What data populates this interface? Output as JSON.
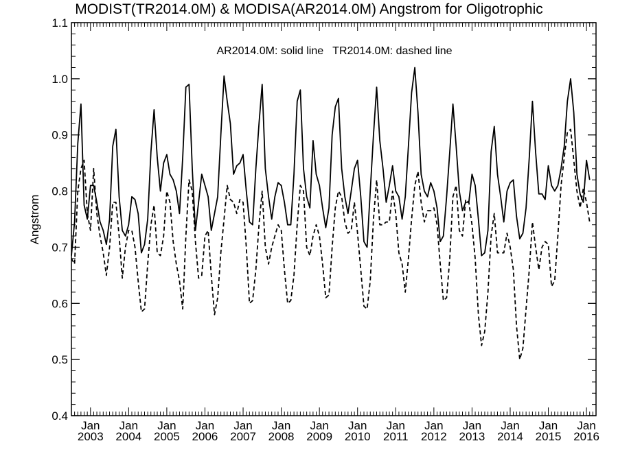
{
  "chart_data": {
    "type": "line",
    "title": "MODIST(TR2014.0M) & MODISA(AR2014.0M)  Angstrom for Oligotrophic",
    "ylabel": "Angstrom",
    "xlabel": "",
    "annotation": "AR2014.0M: solid line   TR2014.0M: dashed line",
    "ylim": [
      0.4,
      1.1
    ],
    "xlim": [
      2002.5,
      2016.25
    ],
    "yticks": [
      "0.4",
      "0.5",
      "0.6",
      "0.7",
      "0.8",
      "0.9",
      "1.0",
      "1.1"
    ],
    "x_tick_labels": [
      {
        "month": "Jan",
        "year": "2003"
      },
      {
        "month": "Jan",
        "year": "2004"
      },
      {
        "month": "Jan",
        "year": "2005"
      },
      {
        "month": "Jan",
        "year": "2006"
      },
      {
        "month": "Jan",
        "year": "2007"
      },
      {
        "month": "Jan",
        "year": "2008"
      },
      {
        "month": "Jan",
        "year": "2009"
      },
      {
        "month": "Jan",
        "year": "2010"
      },
      {
        "month": "Jan",
        "year": "2011"
      },
      {
        "month": "Jan",
        "year": "2012"
      },
      {
        "month": "Jan",
        "year": "2013"
      },
      {
        "month": "Jan",
        "year": "2014"
      },
      {
        "month": "Jan",
        "year": "2015"
      },
      {
        "month": "Jan",
        "year": "2016"
      }
    ],
    "grid": false,
    "series": [
      {
        "name": "AR2014.0M",
        "style": "solid",
        "color": "#000000",
        "values": [
          0.685,
          0.745,
          0.885,
          0.955,
          0.775,
          0.75,
          0.81,
          0.81,
          0.78,
          0.745,
          0.73,
          0.705,
          0.75,
          0.88,
          0.91,
          0.79,
          0.73,
          0.72,
          0.74,
          0.79,
          0.785,
          0.76,
          0.69,
          0.705,
          0.75,
          0.87,
          0.945,
          0.86,
          0.8,
          0.85,
          0.865,
          0.83,
          0.82,
          0.8,
          0.76,
          0.86,
          0.985,
          0.99,
          0.84,
          0.73,
          0.78,
          0.83,
          0.81,
          0.79,
          0.73,
          0.76,
          0.79,
          0.9,
          1.005,
          0.96,
          0.92,
          0.83,
          0.845,
          0.85,
          0.865,
          0.8,
          0.745,
          0.74,
          0.84,
          0.92,
          0.99,
          0.84,
          0.79,
          0.75,
          0.79,
          0.815,
          0.81,
          0.78,
          0.74,
          0.74,
          0.83,
          0.96,
          0.98,
          0.84,
          0.79,
          0.77,
          0.89,
          0.83,
          0.81,
          0.77,
          0.735,
          0.77,
          0.9,
          0.95,
          0.965,
          0.84,
          0.79,
          0.76,
          0.8,
          0.84,
          0.855,
          0.79,
          0.71,
          0.7,
          0.8,
          0.9,
          0.985,
          0.89,
          0.84,
          0.78,
          0.81,
          0.845,
          0.8,
          0.79,
          0.75,
          0.79,
          0.88,
          0.975,
          1.02,
          0.94,
          0.83,
          0.8,
          0.79,
          0.815,
          0.8,
          0.77,
          0.71,
          0.72,
          0.79,
          0.87,
          0.955,
          0.88,
          0.8,
          0.765,
          0.78,
          0.78,
          0.83,
          0.81,
          0.75,
          0.685,
          0.69,
          0.73,
          0.87,
          0.915,
          0.83,
          0.79,
          0.745,
          0.8,
          0.815,
          0.82,
          0.755,
          0.715,
          0.725,
          0.77,
          0.86,
          0.96,
          0.87,
          0.795,
          0.795,
          0.785,
          0.845,
          0.81,
          0.8,
          0.81,
          0.84,
          0.88,
          0.96,
          1.0,
          0.94,
          0.83,
          0.795,
          0.78,
          0.855,
          0.82
        ]
      },
      {
        "name": "TR2014.0M",
        "style": "dashed",
        "color": "#000000",
        "values": [
          0.68,
          0.67,
          0.8,
          0.84,
          0.855,
          0.76,
          0.73,
          0.84,
          0.76,
          0.72,
          0.69,
          0.65,
          0.7,
          0.78,
          0.78,
          0.72,
          0.645,
          0.7,
          0.73,
          0.73,
          0.7,
          0.64,
          0.585,
          0.59,
          0.67,
          0.74,
          0.775,
          0.69,
          0.685,
          0.72,
          0.8,
          0.78,
          0.71,
          0.67,
          0.64,
          0.59,
          0.72,
          0.82,
          0.8,
          0.71,
          0.645,
          0.65,
          0.72,
          0.73,
          0.65,
          0.58,
          0.61,
          0.69,
          0.75,
          0.81,
          0.785,
          0.78,
          0.76,
          0.785,
          0.78,
          0.7,
          0.6,
          0.605,
          0.66,
          0.74,
          0.8,
          0.7,
          0.67,
          0.7,
          0.72,
          0.74,
          0.73,
          0.66,
          0.6,
          0.605,
          0.65,
          0.74,
          0.81,
          0.8,
          0.7,
          0.685,
          0.72,
          0.74,
          0.72,
          0.67,
          0.61,
          0.615,
          0.7,
          0.77,
          0.8,
          0.79,
          0.745,
          0.725,
          0.73,
          0.78,
          0.725,
          0.66,
          0.595,
          0.59,
          0.64,
          0.75,
          0.82,
          0.74,
          0.74,
          0.745,
          0.745,
          0.8,
          0.76,
          0.69,
          0.67,
          0.62,
          0.68,
          0.75,
          0.81,
          0.835,
          0.78,
          0.745,
          0.765,
          0.765,
          0.77,
          0.74,
          0.67,
          0.605,
          0.61,
          0.68,
          0.79,
          0.81,
          0.73,
          0.72,
          0.785,
          0.78,
          0.74,
          0.68,
          0.58,
          0.525,
          0.55,
          0.62,
          0.72,
          0.76,
          0.69,
          0.69,
          0.69,
          0.725,
          0.7,
          0.66,
          0.56,
          0.5,
          0.52,
          0.59,
          0.66,
          0.745,
          0.7,
          0.66,
          0.7,
          0.71,
          0.705,
          0.63,
          0.64,
          0.72,
          0.81,
          0.86,
          0.905,
          0.91,
          0.855,
          0.8,
          0.77,
          0.805,
          0.78,
          0.745
        ]
      }
    ]
  }
}
